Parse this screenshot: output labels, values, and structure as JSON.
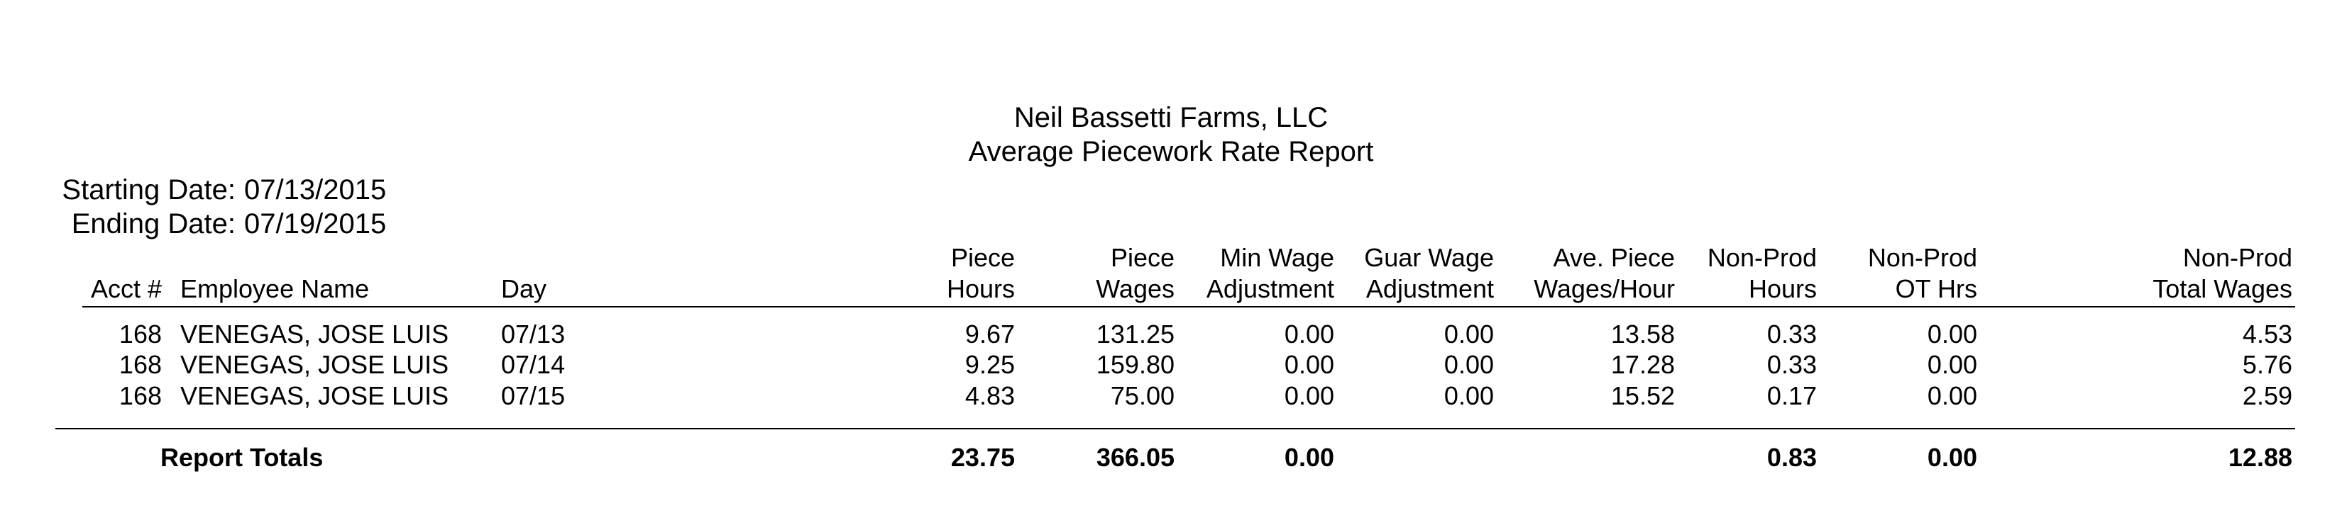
{
  "company_name": "Neil Bassetti Farms, LLC",
  "report_title": "Average Piecework Rate Report",
  "dates": {
    "starting_label": "Starting Date:",
    "starting_value": "07/13/2015",
    "ending_label": "Ending Date:",
    "ending_value": "07/19/2015"
  },
  "columns": {
    "acct": "Acct #",
    "employee": "Employee Name",
    "day": "Day",
    "piece_hours": [
      "Piece",
      "Hours"
    ],
    "piece_wages": [
      "Piece",
      "Wages"
    ],
    "min_wage_adj": [
      "Min Wage",
      "Adjustment"
    ],
    "guar_wage_adj": [
      "Guar Wage",
      "Adjustment"
    ],
    "ave_piece": [
      "Ave. Piece",
      "Wages/Hour"
    ],
    "nonprod_hours": [
      "Non-Prod",
      "Hours"
    ],
    "nonprod_ot": [
      "Non-Prod",
      "OT Hrs"
    ],
    "nonprod_total": [
      "Non-Prod",
      "Total Wages"
    ]
  },
  "rows": [
    {
      "acct": "168",
      "employee": "VENEGAS, JOSE LUIS",
      "day": "07/13",
      "piece_hours": "9.67",
      "piece_wages": "131.25",
      "min_wage_adj": "0.00",
      "guar_wage_adj": "0.00",
      "ave_piece": "13.58",
      "nonprod_hours": "0.33",
      "nonprod_ot": "0.00",
      "nonprod_total": "4.53"
    },
    {
      "acct": "168",
      "employee": "VENEGAS, JOSE LUIS",
      "day": "07/14",
      "piece_hours": "9.25",
      "piece_wages": "159.80",
      "min_wage_adj": "0.00",
      "guar_wage_adj": "0.00",
      "ave_piece": "17.28",
      "nonprod_hours": "0.33",
      "nonprod_ot": "0.00",
      "nonprod_total": "5.76"
    },
    {
      "acct": "168",
      "employee": "VENEGAS, JOSE LUIS",
      "day": "07/15",
      "piece_hours": "4.83",
      "piece_wages": "75.00",
      "min_wage_adj": "0.00",
      "guar_wage_adj": "0.00",
      "ave_piece": "15.52",
      "nonprod_hours": "0.17",
      "nonprod_ot": "0.00",
      "nonprod_total": "2.59"
    }
  ],
  "totals": {
    "label": "Report Totals",
    "piece_hours": "23.75",
    "piece_wages": "366.05",
    "min_wage_adj": "0.00",
    "nonprod_hours": "0.83",
    "nonprod_ot": "0.00",
    "nonprod_total": "12.88"
  }
}
